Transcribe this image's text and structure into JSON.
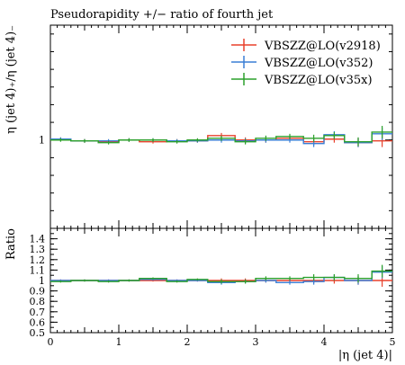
{
  "chart_data": [
    {
      "type": "line",
      "title": "Pseudorapidity +/− ratio of fourth jet",
      "ylabel": "η (jet 4)₊/η (jet 4)₋",
      "ylim": [
        0.0,
        2.3
      ],
      "yticks": [
        {
          "v": 1.0,
          "label": "1"
        }
      ],
      "xlim": [
        0,
        5
      ],
      "grid": false,
      "legend_position": "top-right",
      "bin_edges": [
        0,
        0.3,
        0.7,
        1.0,
        1.3,
        1.7,
        2.0,
        2.3,
        2.7,
        3.0,
        3.3,
        3.7,
        4.0,
        4.3,
        4.7,
        5.0
      ],
      "series": [
        {
          "name": "VBSZZ@LO(v2918)",
          "color": "#e8412c",
          "values": [
            1.01,
            0.99,
            0.98,
            1.0,
            0.98,
            0.99,
            0.99,
            1.05,
            1.0,
            1.0,
            1.02,
            0.98,
            1.01,
            0.97,
            0.99
          ],
          "errors": [
            0.02,
            0.02,
            0.02,
            0.02,
            0.02,
            0.02,
            0.02,
            0.03,
            0.03,
            0.03,
            0.03,
            0.04,
            0.04,
            0.05,
            0.07
          ]
        },
        {
          "name": "VBSZZ@LO(v352)",
          "color": "#3a7fd6",
          "values": [
            1.01,
            0.99,
            0.99,
            1.0,
            1.0,
            0.99,
            0.99,
            1.0,
            0.99,
            1.0,
            1.0,
            0.96,
            1.06,
            0.97,
            1.07
          ],
          "errors": [
            0.02,
            0.02,
            0.02,
            0.02,
            0.02,
            0.02,
            0.02,
            0.03,
            0.03,
            0.03,
            0.03,
            0.04,
            0.04,
            0.05,
            0.07
          ]
        },
        {
          "name": "VBSZZ@LO(v35x)",
          "color": "#2ca02c",
          "values": [
            1.0,
            0.99,
            0.97,
            1.0,
            1.0,
            0.98,
            1.0,
            1.02,
            0.98,
            1.02,
            1.04,
            1.02,
            1.05,
            0.98,
            1.09
          ],
          "errors": [
            0.02,
            0.02,
            0.02,
            0.02,
            0.02,
            0.02,
            0.02,
            0.03,
            0.03,
            0.03,
            0.03,
            0.04,
            0.04,
            0.05,
            0.07
          ]
        }
      ]
    },
    {
      "type": "line",
      "xlabel": "|η (jet 4)|",
      "ylabel": "Ratio",
      "xlim": [
        0,
        5
      ],
      "ylim": [
        0.5,
        1.5
      ],
      "xticks": [
        0,
        1,
        2,
        3,
        4,
        5
      ],
      "yticks": [
        {
          "v": 0.5,
          "label": "0.5"
        },
        {
          "v": 0.6,
          "label": "0.6"
        },
        {
          "v": 0.7,
          "label": "0.7"
        },
        {
          "v": 0.8,
          "label": "0.8"
        },
        {
          "v": 0.9,
          "label": "0.9"
        },
        {
          "v": 1.0,
          "label": "1"
        },
        {
          "v": 1.1,
          "label": "1.1"
        },
        {
          "v": 1.2,
          "label": "1.2"
        },
        {
          "v": 1.3,
          "label": "1.3"
        },
        {
          "v": 1.4,
          "label": "1.4"
        }
      ],
      "grid": false,
      "bin_edges": [
        0,
        0.3,
        0.7,
        1.0,
        1.3,
        1.7,
        2.0,
        2.3,
        2.7,
        3.0,
        3.3,
        3.7,
        4.0,
        4.3,
        4.7,
        5.0
      ],
      "series": [
        {
          "color": "#e8412c",
          "values": [
            1.0,
            1.0,
            1.0,
            1.0,
            1.0,
            1.0,
            1.0,
            1.0,
            1.0,
            1.0,
            1.0,
            1.0,
            1.0,
            1.0,
            1.0
          ],
          "errors": [
            0.01,
            0.01,
            0.01,
            0.01,
            0.01,
            0.01,
            0.01,
            0.02,
            0.02,
            0.02,
            0.02,
            0.03,
            0.03,
            0.04,
            0.06
          ]
        },
        {
          "color": "#3a7fd6",
          "values": [
            1.0,
            1.0,
            1.0,
            1.0,
            1.01,
            1.0,
            1.0,
            0.98,
            0.99,
            1.0,
            0.98,
            0.99,
            1.03,
            1.0,
            1.08
          ],
          "errors": [
            0.01,
            0.01,
            0.01,
            0.01,
            0.01,
            0.01,
            0.01,
            0.02,
            0.02,
            0.02,
            0.02,
            0.03,
            0.03,
            0.04,
            0.06
          ]
        },
        {
          "color": "#2ca02c",
          "values": [
            0.99,
            1.0,
            0.99,
            1.0,
            1.02,
            0.99,
            1.01,
            0.99,
            0.99,
            1.02,
            1.02,
            1.03,
            1.03,
            1.02,
            1.09
          ],
          "errors": [
            0.01,
            0.01,
            0.01,
            0.01,
            0.01,
            0.01,
            0.01,
            0.02,
            0.02,
            0.02,
            0.02,
            0.03,
            0.03,
            0.04,
            0.06
          ]
        }
      ]
    }
  ]
}
